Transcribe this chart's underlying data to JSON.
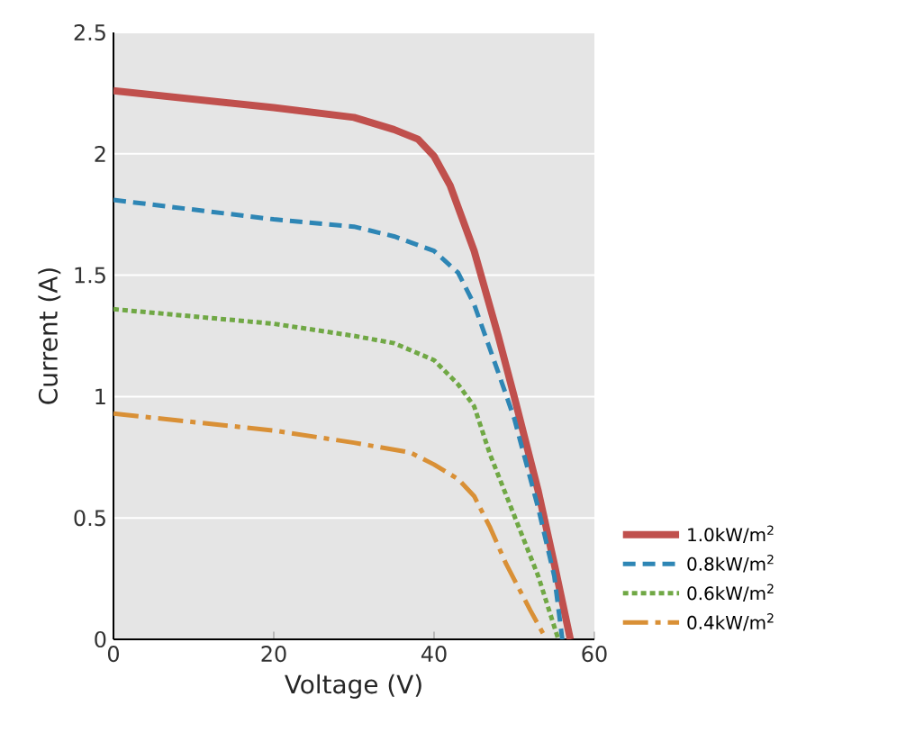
{
  "chart_data": {
    "type": "line",
    "xlabel": "Voltage (V)",
    "ylabel": "Current (A)",
    "xlim": [
      0,
      60
    ],
    "ylim": [
      0,
      2.5
    ],
    "xticks": [
      0,
      20,
      40,
      60
    ],
    "yticks": [
      0,
      0.5,
      1,
      1.5,
      2,
      2.5
    ],
    "grid": "y",
    "legend": "bottom right",
    "series": [
      {
        "name": "1.0kW/m$^{2}$",
        "color": "#c0504d",
        "line_style": "solid",
        "x": [
          0,
          20,
          30,
          35,
          38,
          40,
          42,
          45,
          48,
          50,
          53,
          55,
          57
        ],
        "values": [
          2.26,
          2.19,
          2.15,
          2.1,
          2.06,
          1.99,
          1.87,
          1.6,
          1.25,
          1.0,
          0.61,
          0.31,
          0
        ]
      },
      {
        "name": "0.8kW/m$^{2}$",
        "color": "#2e86b5",
        "line_style": "dashed",
        "x": [
          0,
          20,
          30,
          35,
          40,
          43,
          45,
          48,
          50,
          53,
          55,
          56
        ],
        "values": [
          1.81,
          1.73,
          1.7,
          1.66,
          1.6,
          1.51,
          1.38,
          1.1,
          0.91,
          0.54,
          0.26,
          0
        ]
      },
      {
        "name": "0.6kW/m$^{2}$",
        "color": "#70a845",
        "line_style": "dotted",
        "x": [
          0,
          20,
          30,
          35,
          40,
          43,
          45,
          47,
          50,
          53,
          55.5
        ],
        "values": [
          1.36,
          1.3,
          1.25,
          1.22,
          1.15,
          1.05,
          0.96,
          0.76,
          0.51,
          0.26,
          0
        ]
      },
      {
        "name": "0.4kW/m$^{2}$",
        "color": "#d99036",
        "line_style": "dashdot",
        "x": [
          0,
          20,
          30,
          37,
          40,
          43,
          45,
          47,
          49,
          52,
          54
        ],
        "values": [
          0.93,
          0.86,
          0.81,
          0.77,
          0.72,
          0.66,
          0.59,
          0.46,
          0.31,
          0.12,
          0
        ]
      }
    ]
  }
}
